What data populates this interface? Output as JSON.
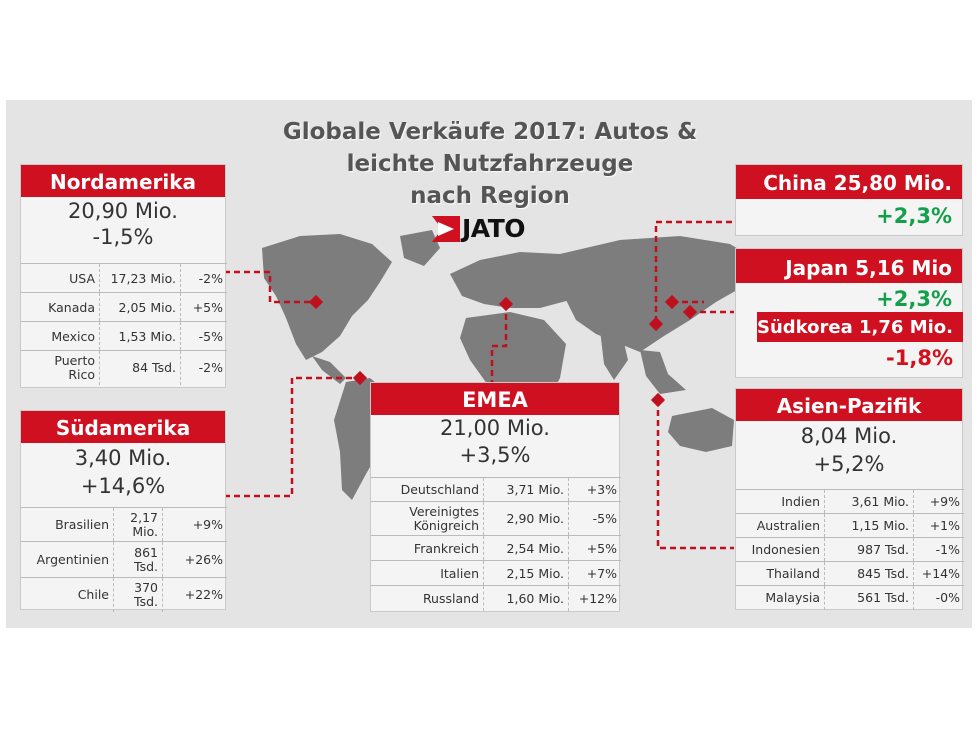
{
  "title": {
    "line1": "Globale Verkäufe 2017: Autos &",
    "line2": "leichte Nutzfahrzeuge",
    "line3": "nach Region"
  },
  "logo": {
    "text": "JATO"
  },
  "colors": {
    "accent": "#cf1020",
    "negative": "#d4101c",
    "positive": "#12a04a",
    "map": "#7a7a7a"
  },
  "nordamerika": {
    "name": "Nordamerika",
    "total": "20,90 Mio.",
    "change": "-1,5%",
    "rows": [
      {
        "country": "USA",
        "value": "17,23 Mio.",
        "pct": "-2%"
      },
      {
        "country": "Kanada",
        "value": "2,05 Mio.",
        "pct": "+5%"
      },
      {
        "country": "Mexico",
        "value": "1,53 Mio.",
        "pct": "-5%"
      },
      {
        "country": "Puerto Rico",
        "value": "84 Tsd.",
        "pct": "-2%"
      }
    ]
  },
  "suedamerika": {
    "name": "Südamerika",
    "total": "3,40 Mio.",
    "change": "+14,6%",
    "rows": [
      {
        "country": "Brasilien",
        "value": "2,17 Mio.",
        "pct": "+9%"
      },
      {
        "country": "Argentinien",
        "value": "861 Tsd.",
        "pct": "+26%"
      },
      {
        "country": "Chile",
        "value": "370 Tsd.",
        "pct": "+22%"
      }
    ]
  },
  "emea": {
    "name": "EMEA",
    "total": "21,00 Mio.",
    "change": "+3,5%",
    "rows": [
      {
        "country": "Deutschland",
        "value": "3,71 Mio.",
        "pct": "+3%"
      },
      {
        "country": "Vereinigtes Königreich",
        "value": "2,90 Mio.",
        "pct": "-5%"
      },
      {
        "country": "Frankreich",
        "value": "2,54 Mio.",
        "pct": "+5%"
      },
      {
        "country": "Italien",
        "value": "2,15 Mio.",
        "pct": "+7%"
      },
      {
        "country": "Russland",
        "value": "1,60 Mio.",
        "pct": "+12%"
      }
    ]
  },
  "china": {
    "label": "China 25,80 Mio.",
    "change": "+2,3%"
  },
  "japan": {
    "label": "Japan 5,16 Mio",
    "change": "+2,3%"
  },
  "suedkorea": {
    "label": "Südkorea 1,76 Mio.",
    "change": "-1,8%"
  },
  "asien": {
    "name": "Asien-Pazifik",
    "total": "8,04 Mio.",
    "change": "+5,2%",
    "rows": [
      {
        "country": "Indien",
        "value": "3,61 Mio.",
        "pct": "+9%"
      },
      {
        "country": "Australien",
        "value": "1,15 Mio.",
        "pct": "+1%"
      },
      {
        "country": "Indonesien",
        "value": "987 Tsd.",
        "pct": "-1%"
      },
      {
        "country": "Thailand",
        "value": "845 Tsd.",
        "pct": "+14%"
      },
      {
        "country": "Malaysia",
        "value": "561 Tsd.",
        "pct": "-0%"
      }
    ]
  }
}
